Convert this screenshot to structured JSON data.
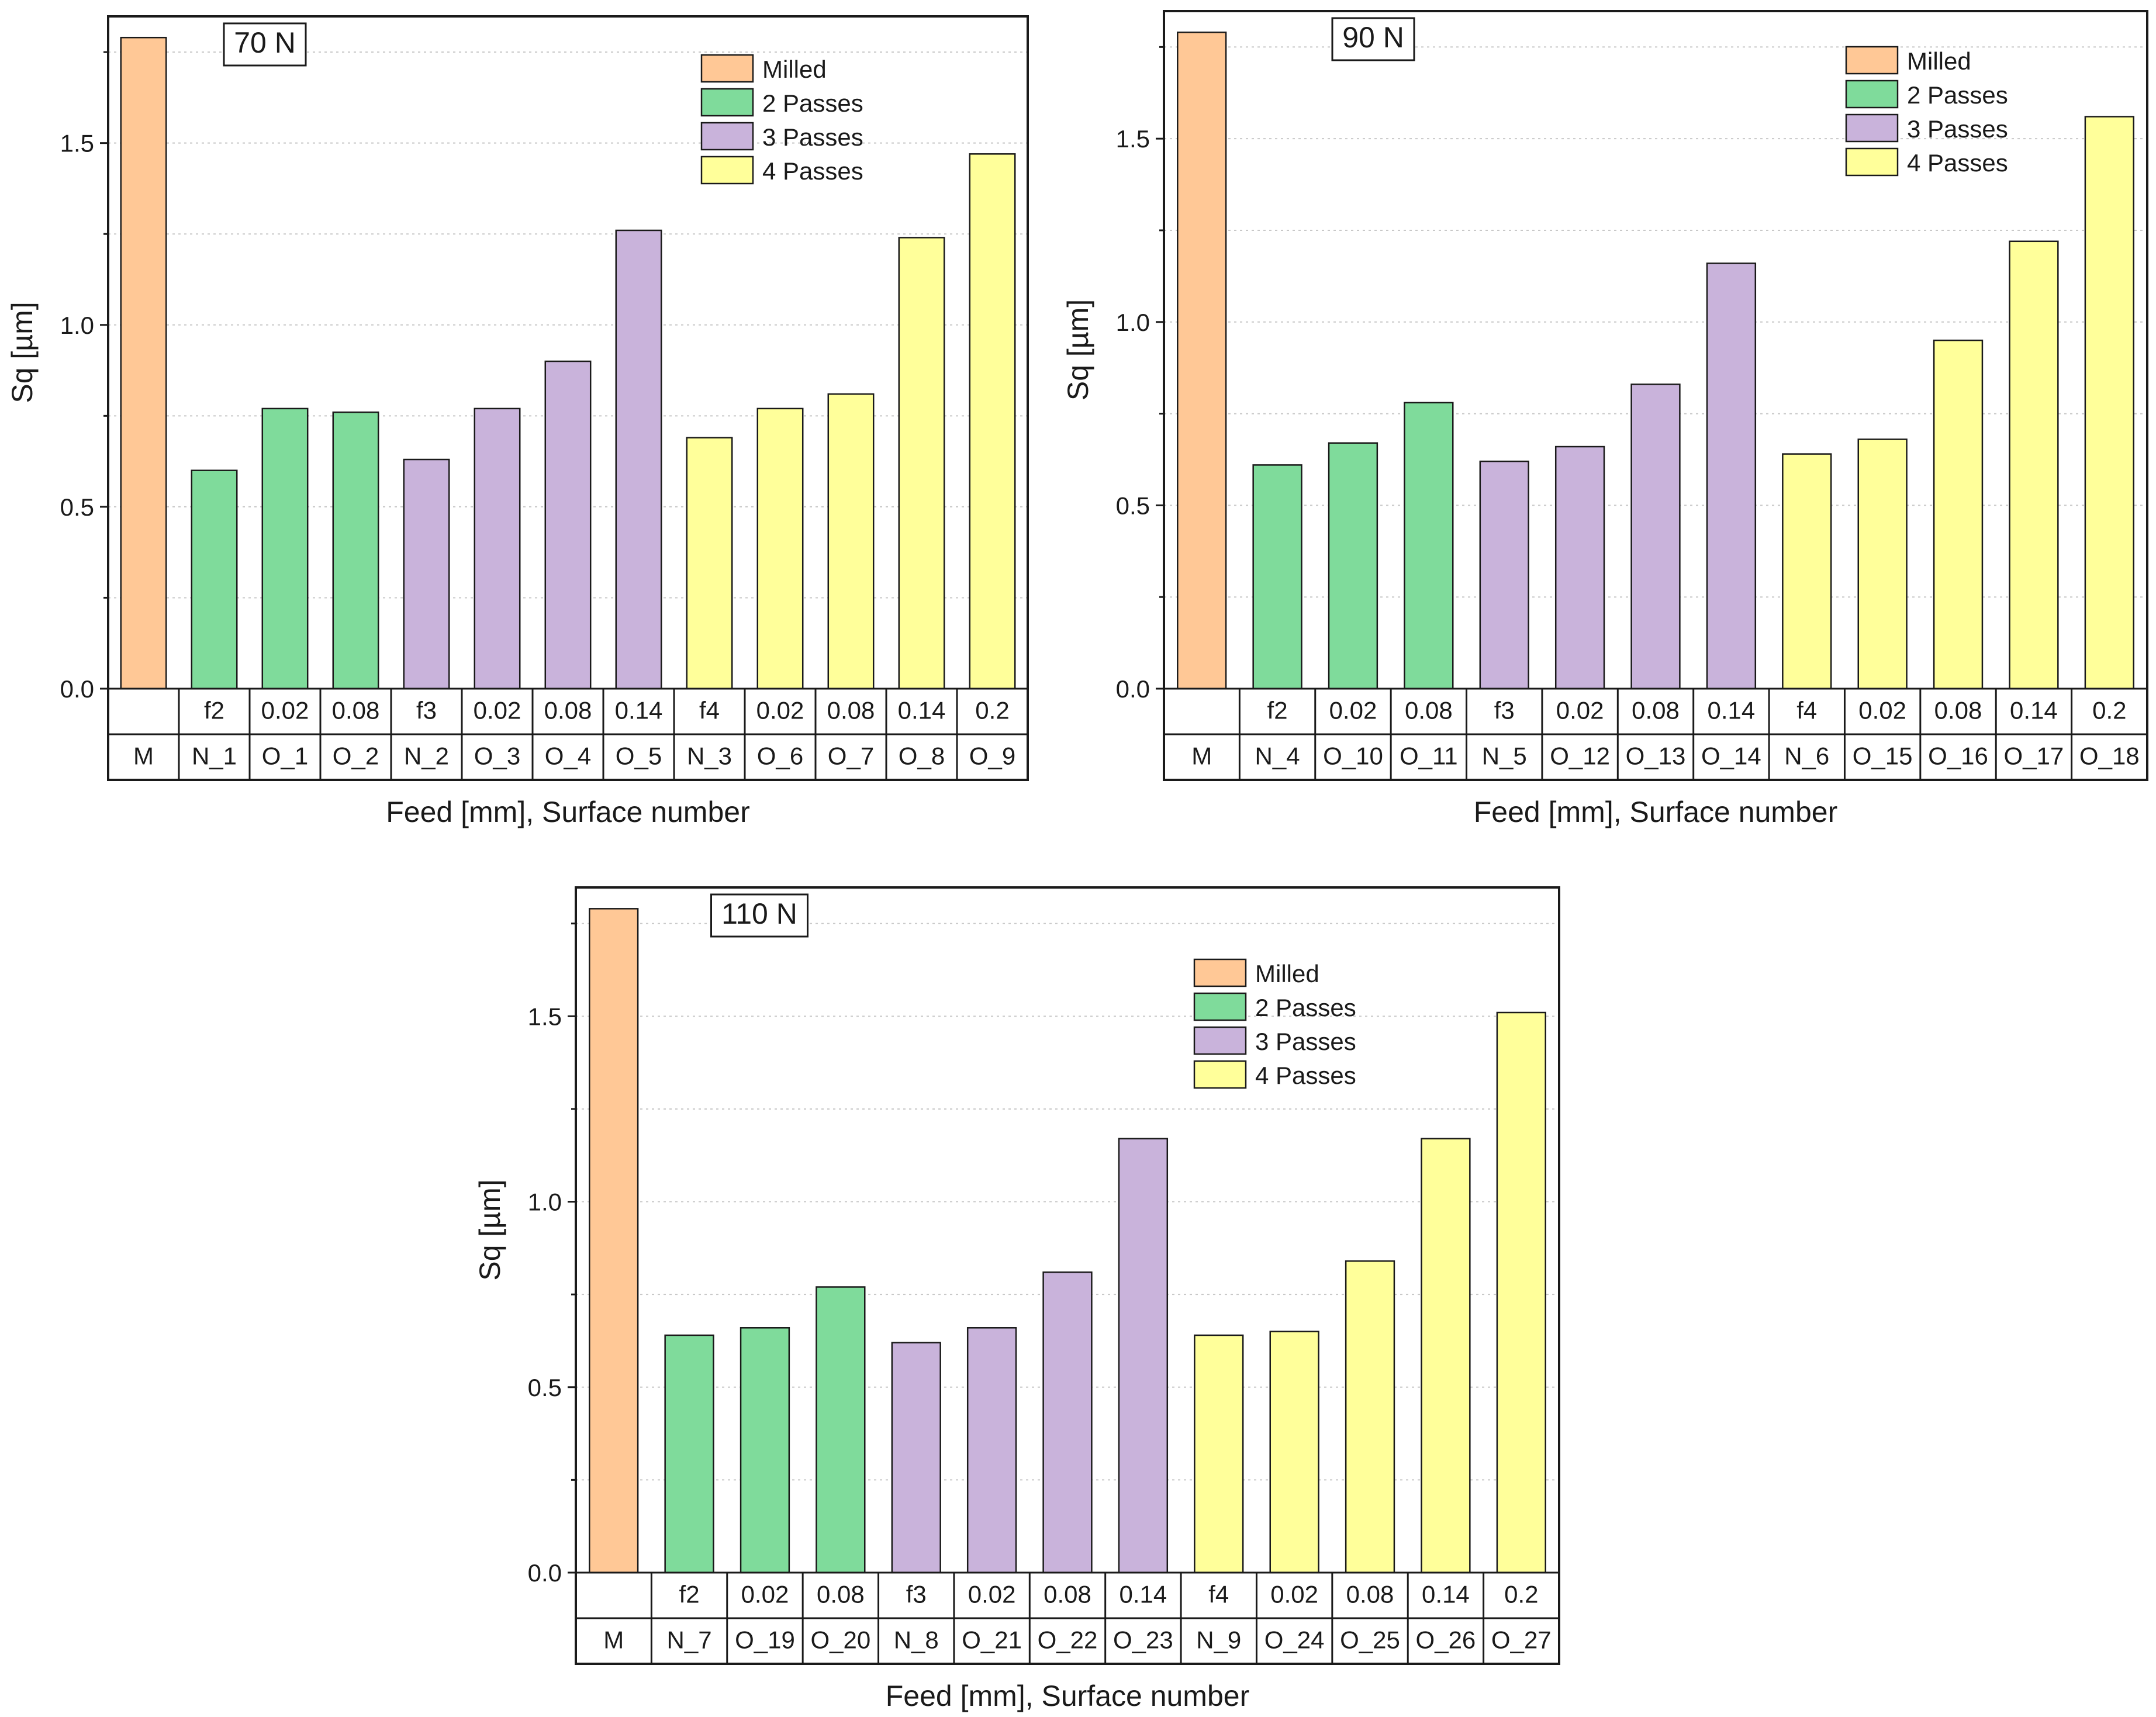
{
  "colors": {
    "milled": "#FFC896",
    "passes2": "#7FDB9B",
    "passes3": "#C9B3DB",
    "passes4": "#FFFF9A",
    "stroke": "#1a1a1a",
    "grid": "#c8c8c8"
  },
  "chart_data": [
    {
      "type": "bar",
      "title": "70 N",
      "xlabel": "Feed [mm], Surface number",
      "ylabel": "Sq [µm]",
      "ylim": [
        0,
        1.8
      ],
      "yticks": [
        "0.0",
        "0.5",
        "1.0",
        "1.5"
      ],
      "legend": [
        "Milled",
        "2 Passes",
        "3 Passes",
        "4 Passes"
      ],
      "legend_position": "top-right",
      "feed_labels": [
        "",
        "f2",
        "0.02",
        "0.08",
        "f3",
        "0.02",
        "0.08",
        "0.14",
        "f4",
        "0.02",
        "0.08",
        "0.14",
        "0.2"
      ],
      "categories": [
        "M",
        "N_1",
        "O_1",
        "O_2",
        "N_2",
        "O_3",
        "O_4",
        "O_5",
        "N_3",
        "O_6",
        "O_7",
        "O_8",
        "O_9"
      ],
      "groups": [
        0,
        1,
        1,
        1,
        2,
        2,
        2,
        2,
        3,
        3,
        3,
        3,
        3
      ],
      "values": [
        1.79,
        0.6,
        0.77,
        0.76,
        0.63,
        0.77,
        0.9,
        1.26,
        0.69,
        0.77,
        0.81,
        1.24,
        1.47
      ]
    },
    {
      "type": "bar",
      "title": "90 N",
      "xlabel": "Feed [mm], Surface number",
      "ylabel": "Sq [µm]",
      "ylim": [
        0,
        1.8
      ],
      "yticks": [
        "0.0",
        "0.5",
        "1.0",
        "1.5"
      ],
      "legend": [
        "Milled",
        "2 Passes",
        "3 Passes",
        "4 Passes"
      ],
      "legend_position": "top-right",
      "feed_labels": [
        "",
        "f2",
        "0.02",
        "0.08",
        "f3",
        "0.02",
        "0.08",
        "0.14",
        "f4",
        "0.02",
        "0.08",
        "0.14",
        "0.2"
      ],
      "categories": [
        "M",
        "N_4",
        "O_10",
        "O_11",
        "N_5",
        "O_12",
        "O_13",
        "O_14",
        "N_6",
        "O_15",
        "O_16",
        "O_17",
        "O_18"
      ],
      "groups": [
        0,
        1,
        1,
        1,
        2,
        2,
        2,
        2,
        3,
        3,
        3,
        3,
        3
      ],
      "values": [
        1.79,
        0.61,
        0.67,
        0.78,
        0.62,
        0.66,
        0.83,
        1.16,
        0.64,
        0.68,
        0.95,
        1.22,
        1.56
      ]
    },
    {
      "type": "bar",
      "title": "110 N",
      "xlabel": "Feed [mm], Surface number",
      "ylabel": "Sq [µm]",
      "ylim": [
        0,
        1.8
      ],
      "yticks": [
        "0.0",
        "0.5",
        "1.0",
        "1.5"
      ],
      "legend": [
        "Milled",
        "2 Passes",
        "3 Passes",
        "4 Passes"
      ],
      "legend_position": "top-right",
      "feed_labels": [
        "",
        "f2",
        "0.02",
        "0.08",
        "f3",
        "0.02",
        "0.08",
        "0.14",
        "f4",
        "0.02",
        "0.08",
        "0.14",
        "0.2"
      ],
      "categories": [
        "M",
        "N_7",
        "O_19",
        "O_20",
        "N_8",
        "O_21",
        "O_22",
        "O_23",
        "N_9",
        "O_24",
        "O_25",
        "O_26",
        "O_27"
      ],
      "groups": [
        0,
        1,
        1,
        1,
        2,
        2,
        2,
        2,
        3,
        3,
        3,
        3,
        3
      ],
      "values": [
        1.79,
        0.64,
        0.66,
        0.77,
        0.62,
        0.66,
        0.81,
        1.17,
        0.64,
        0.65,
        0.84,
        1.17,
        1.51
      ]
    }
  ]
}
